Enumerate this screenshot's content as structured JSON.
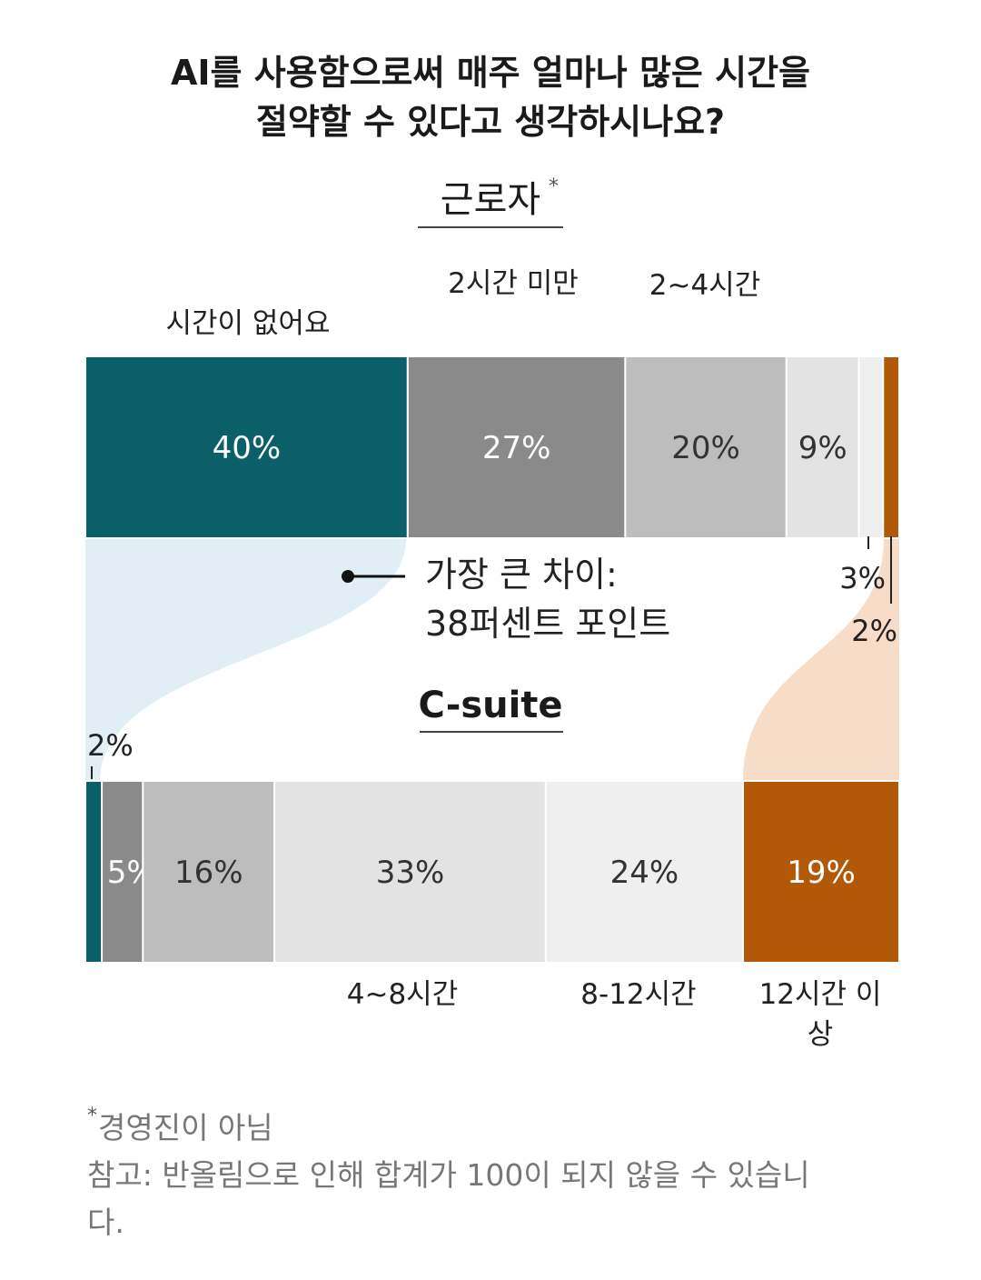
{
  "chart_data": {
    "type": "bar",
    "orientation": "horizontal-stacked",
    "title_line1": "AI를 사용함으로써 매주 얼마나 많은 시간을",
    "title_line2": "절약할 수 있다고 생각하시나요?",
    "categories": [
      "시간이 없어요",
      "2시간 미만",
      "2~4시간",
      "4~8시간",
      "8-12시간",
      "12시간 이상"
    ],
    "category_label_lines": {
      "12plus_line1": "12시간 이",
      "12plus_line2": "상"
    },
    "colors": [
      "#0b5f68",
      "#8a8a8a",
      "#bdbdbd",
      "#e3e3e3",
      "#efeff0",
      "#b35806"
    ],
    "series": [
      {
        "name": "근로자",
        "name_marker": "*",
        "values": [
          40,
          27,
          20,
          9,
          3,
          2
        ],
        "value_labels": [
          "40%",
          "27%",
          "20%",
          "9%",
          "3%",
          "2%"
        ]
      },
      {
        "name": "C-suite",
        "values": [
          2,
          5,
          16,
          33,
          24,
          19
        ],
        "value_labels": [
          "2%",
          "5%",
          "16%",
          "33%",
          "24%",
          "19%"
        ]
      }
    ],
    "xlim": [
      0,
      100
    ],
    "annotation_line1": "가장 큰 차이:",
    "annotation_line2": "38퍼센트 포인트",
    "legend": "none",
    "grid": false
  },
  "footnote": {
    "star": "*",
    "line1": "경영진이 아님",
    "line2": "참고: 반올림으로 인해 합계가 100이 되지 않을 수 있습니",
    "line3": "다."
  }
}
